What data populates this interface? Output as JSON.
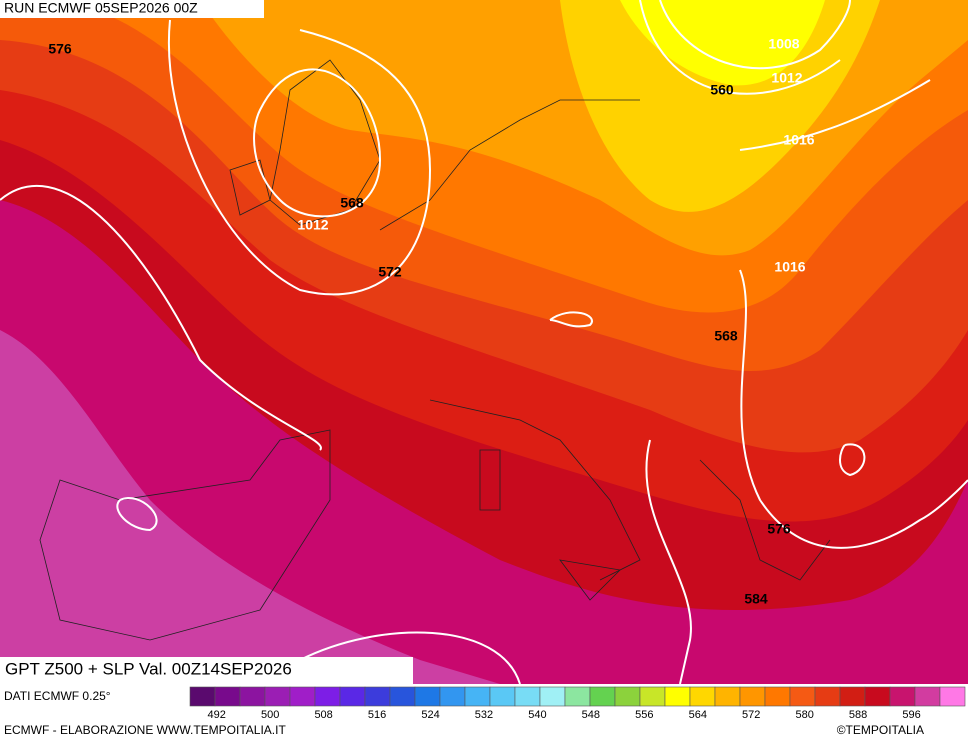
{
  "header": {
    "run": "RUN ECMWF 05SEP2026 00Z"
  },
  "map": {
    "gpt_labels": [
      576,
      568,
      572,
      560,
      568,
      576,
      584
    ],
    "slp_labels": [
      1008,
      1012,
      1016,
      1012,
      1016
    ]
  },
  "legend": {
    "title": "GPT Z500 + SLP Val. 00Z14SEP2026",
    "source": "DATI ECMWF 0.25°",
    "colorbar": {
      "range": [
        488,
        604
      ],
      "ticks": [
        492,
        500,
        508,
        516,
        524,
        532,
        540,
        548,
        556,
        564,
        572,
        580,
        588,
        596
      ],
      "colors": [
        "#5a0a6e",
        "#780a8c",
        "#8c14a0",
        "#9b1eb4",
        "#a01ec8",
        "#7d1ee6",
        "#5a28e6",
        "#3c3cdc",
        "#2855dc",
        "#1e78e6",
        "#3296f0",
        "#46b4f5",
        "#5ac8f5",
        "#78dcf5",
        "#a0f0f5",
        "#8ce6a0",
        "#64d250",
        "#8cd23c",
        "#c8e628",
        "#ffff00",
        "#ffd700",
        "#ffb400",
        "#ff9600",
        "#ff7800",
        "#f55a14",
        "#e63c14",
        "#d21e14",
        "#c80a1e",
        "#c8146e",
        "#d23ca0",
        "#ff78e6"
      ]
    }
  },
  "footer": {
    "left": "ECMWF - ELABORAZIONE WWW.TEMPOITALIA.IT",
    "right": "©TEMPOITALIA"
  }
}
